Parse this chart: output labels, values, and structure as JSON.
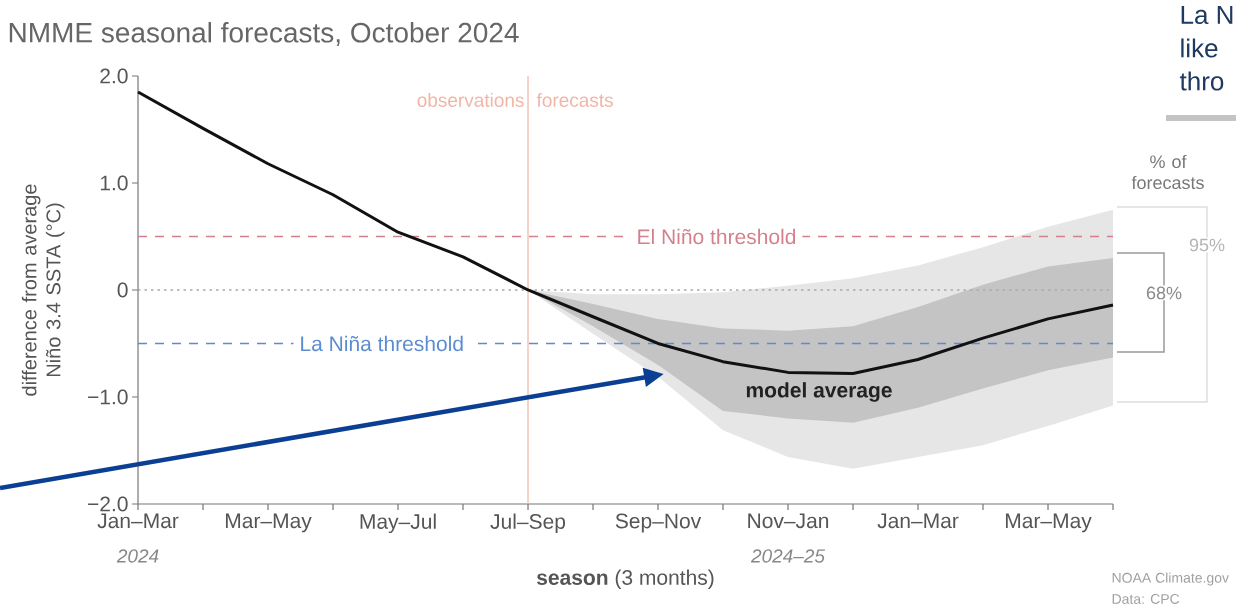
{
  "chart_data": {
    "type": "line",
    "title": "NMME seasonal forecasts, October 2024",
    "xlabel": "**season** (3 months)",
    "ylabel": "difference from average Niño 3.4 SSTA (°C)",
    "categories": [
      "Jan–Mar",
      null,
      "Mar–May",
      null,
      "May–Jul",
      null,
      "Jul–Sep",
      null,
      "Sep–Nov",
      null,
      "Nov–Jan",
      null,
      "Jan–Mar",
      null,
      "Mar–May",
      null
    ],
    "ylim": [
      -2,
      2
    ],
    "yticks": [
      {
        "value": -2,
        "label": "−2.0"
      },
      {
        "value": -1,
        "label": "−1.0"
      },
      0,
      {
        "value": 1,
        "label": "1.0"
      },
      {
        "value": 2,
        "label": "2.0"
      }
    ],
    "series": [
      {
        "type": "area",
        "color": "#e6e6e6",
        "values": [
          null,
          null,
          null,
          null,
          null,
          null,
          null,
          null,
          null,
          null,
          null,
          null,
          null,
          null,
          null,
          null
        ],
        "lower": [
          null,
          null,
          null,
          null,
          null,
          null,
          0,
          -0.41,
          -0.81,
          -1.31,
          -1.56,
          -1.67,
          -1.56,
          -1.45,
          -1.27,
          -1.08
        ],
        "upper": [
          null,
          null,
          null,
          null,
          null,
          null,
          0,
          -0.04,
          -0.04,
          -0.02,
          0.04,
          0.11,
          0.23,
          0.4,
          0.59,
          0.75
        ]
      },
      {
        "type": "area",
        "color": "#c4c4c4",
        "values": [
          null,
          null,
          null,
          null,
          null,
          null,
          null,
          null,
          null,
          null,
          null,
          null,
          null,
          null,
          null,
          null
        ],
        "lower": [
          null,
          null,
          null,
          null,
          null,
          null,
          0,
          -0.34,
          -0.7,
          -1.13,
          -1.2,
          -1.24,
          -1.1,
          -0.92,
          -0.75,
          -0.63
        ],
        "upper": [
          null,
          null,
          null,
          null,
          null,
          null,
          0,
          -0.13,
          -0.27,
          -0.36,
          -0.38,
          -0.34,
          -0.16,
          0.05,
          0.22,
          0.3
        ]
      },
      {
        "color": "#111111",
        "values": [
          1.85,
          1.51,
          1.18,
          0.89,
          0.54,
          0.31,
          0,
          -0.25,
          -0.5,
          -0.67,
          -0.77,
          -0.78,
          -0.65,
          -0.45,
          -0.27,
          -0.14
        ]
      }
    ],
    "ref_lines": [
      {
        "axis": "y",
        "value": 0.5,
        "label": "El Niño threshold",
        "color": "#d4808c",
        "line_style": "dashed"
      },
      {
        "axis": "y",
        "value": -0.5,
        "label": "La Niña threshold",
        "color": "#5b8bd0",
        "line_style": "dashed"
      },
      {
        "axis": "y",
        "value": 0,
        "color": "#aaaaaa",
        "line_style": "dotted"
      },
      {
        "axis": "x",
        "value": "Jul–Sep",
        "label": "observations",
        "color": "#f2b4a4",
        "line_style": "solid"
      }
    ],
    "annotations": [
      "forecasts",
      "model average",
      "% of forecasts",
      "95%",
      "68%",
      "2024",
      "2024–25",
      "NOAA Climate.gov",
      "Data: CPC",
      "La N",
      "like",
      "thro"
    ]
  }
}
